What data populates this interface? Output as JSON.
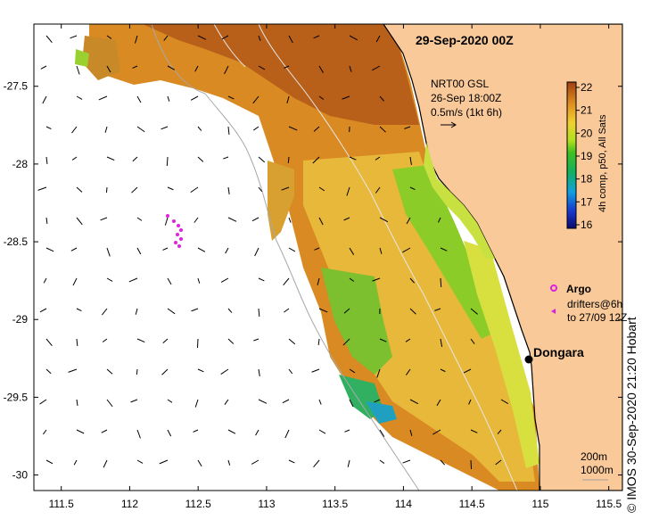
{
  "map": {
    "title": "29-Sep-2020 00Z",
    "product_lines": [
      "NRT00 GSL",
      "26-Sep 18:00Z",
      "0.5m/s (1kt 6h)"
    ],
    "colorbar": {
      "caption": "4h comp, p50, All Sats",
      "ticks": [
        "22",
        "21",
        "20",
        "19",
        "18",
        "17",
        "16"
      ],
      "min": 16,
      "max": 22
    },
    "legend": {
      "argo_label": "Argo",
      "drifters_line1": "drifters@6h",
      "drifters_line2": "to 27/09 12Z",
      "argo_color": "#e020e0"
    },
    "place": {
      "name": "Dongara",
      "lon": 114.93,
      "lat": -29.25
    },
    "depth_labels": [
      "200m",
      "1000m"
    ],
    "credit": "© IMOS 30-Sep-2020 21:20 Hobart",
    "x_axis": {
      "ticks": [
        "111.5",
        "112",
        "112.5",
        "113",
        "113.5",
        "114",
        "114.5",
        "115",
        "115.5"
      ],
      "values": [
        111.5,
        112,
        112.5,
        113,
        113.5,
        114,
        114.5,
        115,
        115.5
      ],
      "range": [
        111.3,
        115.6
      ]
    },
    "y_axis": {
      "ticks": [
        "-27.5",
        "-28",
        "-28.5",
        "-29",
        "-29.5",
        "-30"
      ],
      "values": [
        -27.5,
        -28,
        -28.5,
        -29,
        -29.5,
        -30
      ],
      "range": [
        -30.1,
        -27.1
      ]
    },
    "colors": {
      "land": "#f9c99a",
      "coast": "#000000",
      "ocean": "#ffffff",
      "dongara_marker": "#000000"
    }
  }
}
